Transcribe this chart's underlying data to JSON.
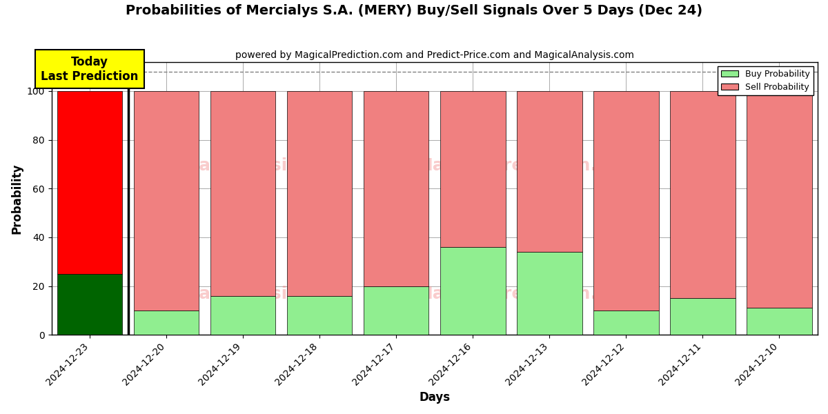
{
  "title": "Probabilities of Mercialys S.A. (MERY) Buy/Sell Signals Over 5 Days (Dec 24)",
  "subtitle": "powered by MagicalPrediction.com and Predict-Price.com and MagicalAnalysis.com",
  "xlabel": "Days",
  "ylabel": "Probability",
  "categories": [
    "2024-12-23",
    "2024-12-20",
    "2024-12-19",
    "2024-12-18",
    "2024-12-17",
    "2024-12-16",
    "2024-12-13",
    "2024-12-12",
    "2024-12-11",
    "2024-12-10"
  ],
  "buy_values": [
    25,
    10,
    16,
    16,
    20,
    36,
    34,
    10,
    15,
    11
  ],
  "sell_values": [
    75,
    90,
    84,
    84,
    80,
    64,
    66,
    90,
    85,
    89
  ],
  "buy_color_today": "#006400",
  "sell_color_today": "#ff0000",
  "buy_color_others": "#90EE90",
  "sell_color_others": "#f08080",
  "today_label": "Today\nLast Prediction",
  "legend_buy": "Buy Probability",
  "legend_sell": "Sell Probability",
  "ylim": [
    0,
    112
  ],
  "dashed_line_y": 108,
  "background_color": "#ffffff",
  "grid_color": "#aaaaaa"
}
